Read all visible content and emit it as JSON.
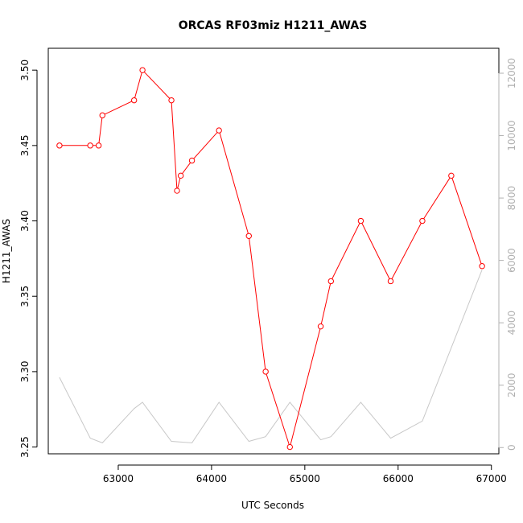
{
  "chart_data": {
    "type": "line",
    "title": "ORCAS RF03miz H1211_AWAS",
    "xlabel": "UTC Seconds",
    "ylabel": "H1211_AWAS",
    "xlim": [
      62250,
      67080
    ],
    "ylim": [
      3.2455,
      3.5145
    ],
    "y2lim": [
      -200,
      12800
    ],
    "x_ticks": [
      63000,
      64000,
      65000,
      66000,
      67000
    ],
    "y_ticks": [
      3.25,
      3.3,
      3.35,
      3.4,
      3.45,
      3.5
    ],
    "y2_ticks": [
      0,
      2000,
      4000,
      6000,
      8000,
      10000,
      12000
    ],
    "grid": false,
    "colors": {
      "primary": "#ff0000",
      "secondary": "#c8c8c8",
      "secondary_axis": "#b0b0b0"
    },
    "series": [
      {
        "axis": "left",
        "marker": "open-circle",
        "x": [
          62370,
          62700,
          62790,
          62830,
          63170,
          63260,
          63570,
          63630,
          63670,
          63790,
          64080,
          64400,
          64580,
          64840,
          65170,
          65280,
          65600,
          65920,
          66260,
          66570,
          66900
        ],
        "y": [
          3.45,
          3.45,
          3.45,
          3.47,
          3.48,
          3.5,
          3.48,
          3.42,
          3.43,
          3.44,
          3.46,
          3.39,
          3.3,
          3.25,
          3.33,
          3.36,
          3.4,
          3.36,
          3.4,
          3.43,
          3.37
        ]
      },
      {
        "axis": "right",
        "marker": "none",
        "x": [
          62370,
          62700,
          62830,
          63170,
          63260,
          63570,
          63790,
          64080,
          64400,
          64580,
          64840,
          65170,
          65280,
          65600,
          65920,
          66260,
          66900
        ],
        "y": [
          2250,
          300,
          150,
          1250,
          1450,
          200,
          150,
          1450,
          200,
          350,
          1450,
          250,
          350,
          1450,
          300,
          850,
          5700
        ]
      }
    ]
  }
}
